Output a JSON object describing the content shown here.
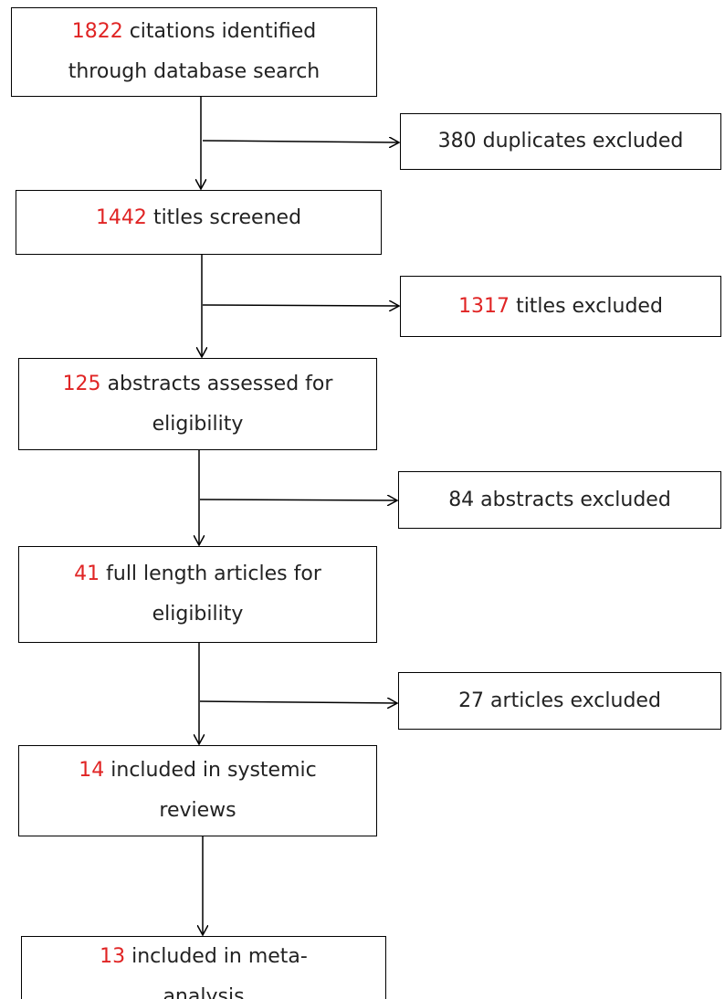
{
  "nodes": [
    {
      "number": "1822",
      "lines": [
        "citations identified",
        "through database search"
      ]
    },
    {
      "number": "1442",
      "lines": [
        "titles screened"
      ]
    },
    {
      "number": "125",
      "lines": [
        "abstracts assessed for",
        "eligibility"
      ]
    },
    {
      "number": "41",
      "lines": [
        "full length articles for",
        "eligibility"
      ]
    },
    {
      "number": "14",
      "lines": [
        "included in systemic",
        "reviews"
      ]
    },
    {
      "number": "13",
      "lines": [
        "included in meta-",
        "analysis"
      ]
    }
  ],
  "exclusions": [
    {
      "text": "380 duplicates excluded"
    },
    {
      "number": "1317",
      "text": "titles excluded"
    },
    {
      "text": "84 abstracts excluded"
    },
    {
      "text": "27 articles excluded"
    }
  ]
}
